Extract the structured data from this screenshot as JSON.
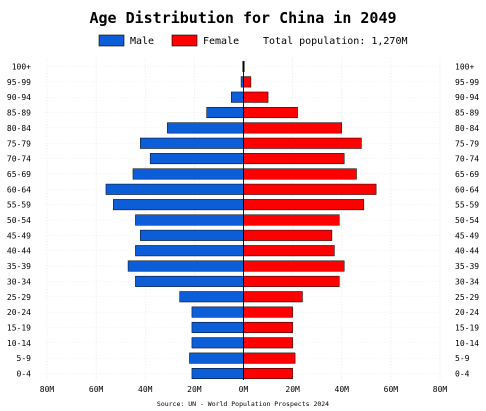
{
  "chart_data": {
    "type": "bar",
    "orientation": "horizontal",
    "subtype": "population-pyramid",
    "title": "Age Distribution for China in 2049",
    "categories": [
      "0-4",
      "5-9",
      "10-14",
      "15-19",
      "20-24",
      "25-29",
      "30-34",
      "35-39",
      "40-44",
      "45-49",
      "50-54",
      "55-59",
      "60-64",
      "65-69",
      "70-74",
      "75-79",
      "80-84",
      "85-89",
      "90-94",
      "95-99",
      "100+"
    ],
    "series": [
      {
        "name": "Male",
        "color": "#0b5ed7",
        "values": [
          21,
          22,
          21,
          21,
          21,
          26,
          44,
          47,
          44,
          42,
          44,
          53,
          56,
          45,
          38,
          42,
          31,
          15,
          5,
          1,
          0.3
        ]
      },
      {
        "name": "Female",
        "color": "#ff0000",
        "values": [
          20,
          21,
          20,
          20,
          20,
          24,
          39,
          41,
          37,
          36,
          39,
          49,
          54,
          46,
          41,
          48,
          40,
          22,
          10,
          3,
          0.3
        ]
      }
    ],
    "total_label": "Total population: 1,270M",
    "x_ticks": [
      "80M",
      "60M",
      "40M",
      "20M",
      "0M",
      "20M",
      "40M",
      "60M",
      "80M"
    ],
    "xlim": [
      -80,
      80
    ],
    "unit": "M",
    "grid": true,
    "legend_position": "top-center",
    "source": "Source: UN - World Population Prospects 2024"
  }
}
